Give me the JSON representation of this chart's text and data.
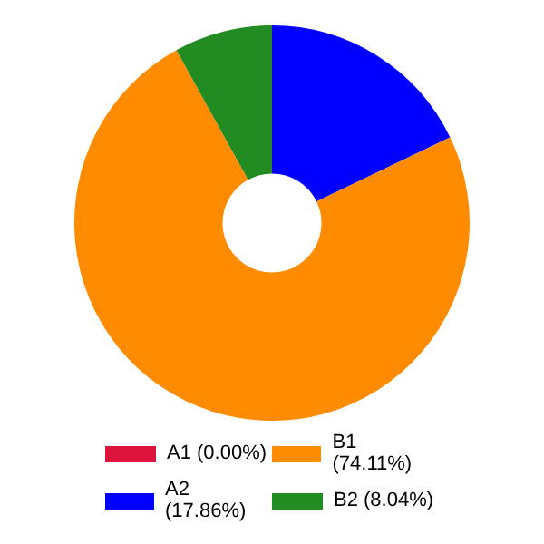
{
  "chart_data": {
    "type": "donut",
    "categories": [
      "A1 (0.00%)",
      "A2 (17.86%)",
      "B1 (74.11%)",
      "B2 (8.04%)"
    ],
    "values": [
      0,
      17.86,
      74.11,
      8.04
    ],
    "colors": [
      "#dc143c",
      "#0000ff",
      "#ff8c00",
      "#228b22"
    ],
    "legend": "bottom"
  }
}
